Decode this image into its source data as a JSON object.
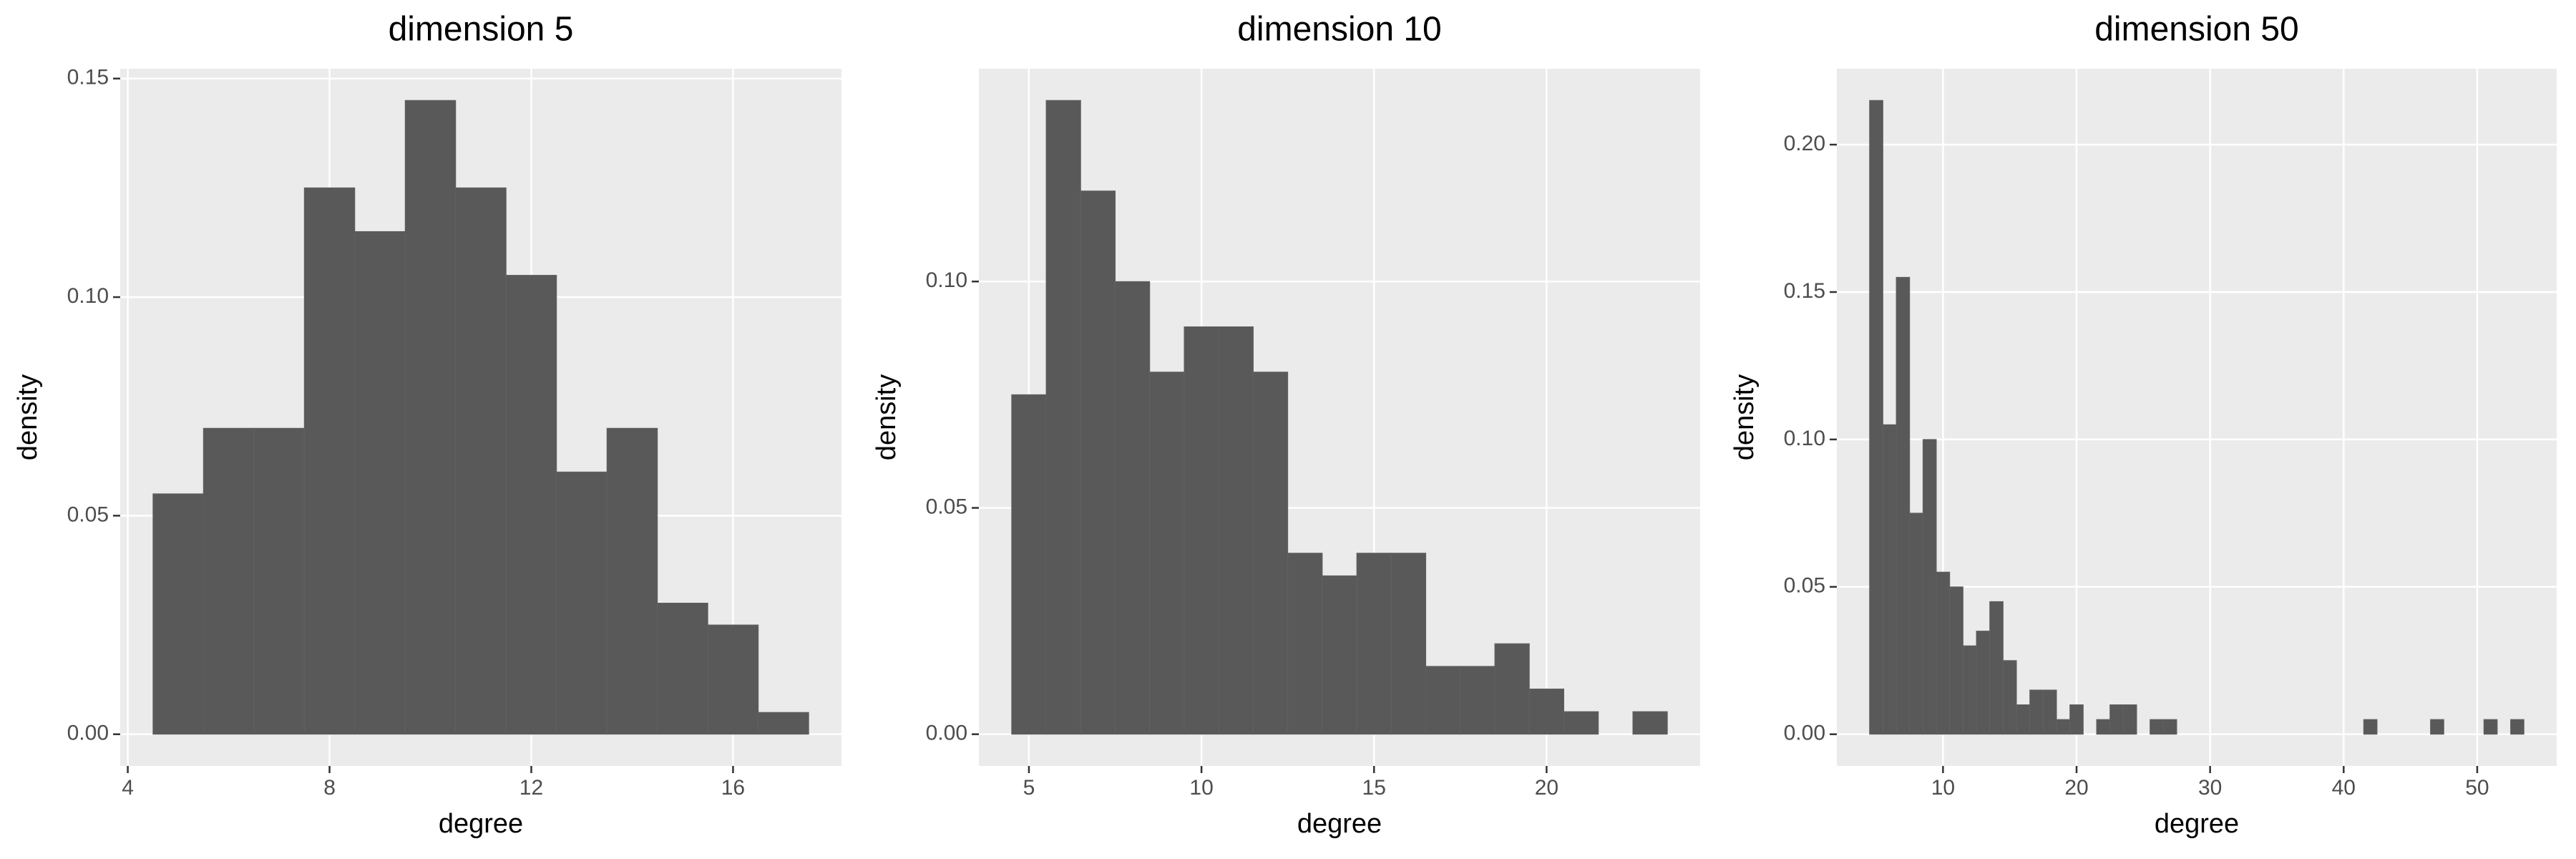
{
  "chart_data": [
    {
      "type": "histogram",
      "title": "dimension 5",
      "xlabel": "degree",
      "ylabel": "density",
      "color": "#595959",
      "grid": true,
      "bins": [
        4.5,
        5.5,
        6.5,
        7.5,
        8.5,
        9.5,
        10.5,
        11.5,
        12.5,
        13.5,
        14.5,
        15.5,
        16.5,
        17.5
      ],
      "values": [
        0.055,
        0.07,
        0.07,
        0.125,
        0.115,
        0.145,
        0.125,
        0.105,
        0.06,
        0.07,
        0.03,
        0.025,
        0.005
      ],
      "xlim": [
        3.85,
        18.15
      ],
      "ylim": [
        -0.00725,
        0.15225
      ],
      "xticks": [
        4,
        8,
        12,
        16
      ],
      "yticks": [
        {
          "value": 0,
          "label": "0.00"
        },
        {
          "value": 0.05,
          "label": "0.05"
        },
        {
          "value": 0.1,
          "label": "0.10"
        },
        {
          "value": 0.15,
          "label": "0.15"
        }
      ]
    },
    {
      "type": "histogram",
      "title": "dimension 10",
      "xlabel": "degree",
      "ylabel": "density",
      "color": "#595959",
      "grid": true,
      "bins": [
        4.5,
        5.5,
        6.5,
        7.5,
        8.5,
        9.5,
        10.5,
        11.5,
        12.5,
        13.5,
        14.5,
        15.5,
        16.5,
        17.5,
        18.5,
        19.5,
        20.5,
        21.5,
        22.5,
        23.5
      ],
      "values": [
        0.075,
        0.14,
        0.12,
        0.1,
        0.08,
        0.09,
        0.09,
        0.08,
        0.04,
        0.035,
        0.04,
        0.04,
        0.015,
        0.015,
        0.02,
        0.01,
        0.005,
        0,
        0.005
      ],
      "xlim": [
        3.55,
        24.45
      ],
      "ylim": [
        -0.007,
        0.147
      ],
      "xticks": [
        5,
        10,
        15,
        20
      ],
      "yticks": [
        {
          "value": 0,
          "label": "0.00"
        },
        {
          "value": 0.05,
          "label": "0.05"
        },
        {
          "value": 0.1,
          "label": "0.10"
        }
      ]
    },
    {
      "type": "histogram",
      "title": "dimension 50",
      "xlabel": "degree",
      "ylabel": "density",
      "color": "#595959",
      "grid": true,
      "bins": [
        4.5,
        5.5,
        6.5,
        7.5,
        8.5,
        9.5,
        10.5,
        11.5,
        12.5,
        13.5,
        14.5,
        15.5,
        16.5,
        17.5,
        18.5,
        19.5,
        20.5,
        21.5,
        22.5,
        23.5,
        24.5,
        25.5,
        26.5,
        27.5,
        28.5,
        29.5,
        30.5,
        31.5,
        32.5,
        33.5,
        34.5,
        35.5,
        36.5,
        37.5,
        38.5,
        39.5,
        40.5,
        41.5,
        42.5,
        43.5,
        44.5,
        45.5,
        46.5,
        47.5,
        48.5,
        49.5,
        50.5,
        51.5,
        52.5,
        53.5
      ],
      "values": [
        0.215,
        0.105,
        0.155,
        0.075,
        0.1,
        0.055,
        0.05,
        0.03,
        0.035,
        0.045,
        0.025,
        0.01,
        0.015,
        0.015,
        0.005,
        0.01,
        0,
        0.005,
        0.01,
        0.01,
        0,
        0.005,
        0.005,
        0,
        0,
        0,
        0,
        0,
        0,
        0,
        0,
        0,
        0,
        0,
        0,
        0,
        0,
        0.005,
        0,
        0,
        0,
        0,
        0.005,
        0,
        0,
        0,
        0.005,
        0,
        0.005
      ],
      "xlim": [
        2.05,
        55.95
      ],
      "ylim": [
        -0.01075,
        0.22575
      ],
      "xticks": [
        10,
        20,
        30,
        40,
        50
      ],
      "yticks": [
        {
          "value": 0,
          "label": "0.00"
        },
        {
          "value": 0.05,
          "label": "0.05"
        },
        {
          "value": 0.1,
          "label": "0.10"
        },
        {
          "value": 0.15,
          "label": "0.15"
        },
        {
          "value": 0.2,
          "label": "0.20"
        }
      ]
    }
  ]
}
